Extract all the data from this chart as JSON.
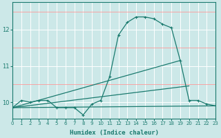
{
  "xlabel": "Humidex (Indice chaleur)",
  "background_color": "#cce8e8",
  "line_color": "#1a7a6e",
  "xlim": [
    0,
    23
  ],
  "ylim": [
    9.55,
    12.75
  ],
  "yticks": [
    10,
    11,
    12
  ],
  "xtick_labels": [
    "0",
    "1",
    "2",
    "3",
    "4",
    "5",
    "6",
    "7",
    "8",
    "9",
    "10",
    "11",
    "12",
    "13",
    "14",
    "15",
    "16",
    "17",
    "18",
    "19",
    "20",
    "21",
    "22",
    "23"
  ],
  "main_x": [
    0,
    1,
    2,
    3,
    4,
    5,
    6,
    7,
    8,
    9,
    10,
    11,
    12,
    13,
    14,
    15,
    16,
    17,
    18,
    19,
    20,
    21,
    22,
    23
  ],
  "main_y": [
    9.85,
    10.05,
    10.0,
    10.05,
    10.05,
    9.85,
    9.85,
    9.85,
    9.65,
    9.95,
    10.05,
    10.7,
    11.85,
    12.2,
    12.35,
    12.35,
    12.3,
    12.15,
    12.05,
    11.15,
    10.05,
    10.05,
    9.95,
    9.9
  ],
  "trend1_x": [
    0,
    23
  ],
  "trend1_y": [
    9.85,
    9.9
  ],
  "trend2_x": [
    0,
    19
  ],
  "trend2_y": [
    9.85,
    11.15
  ],
  "trend3_x": [
    0,
    20
  ],
  "trend3_y": [
    9.85,
    10.45
  ]
}
